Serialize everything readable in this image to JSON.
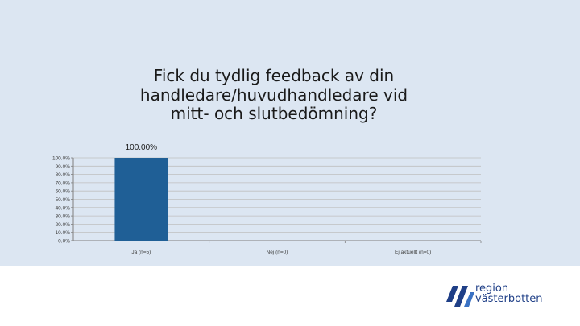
{
  "chart_data": {
    "type": "bar",
    "title": "Fick du tydlig feedback av din handledare/huvudhandledare vid mitt- och slutbedömning?",
    "categories": [
      "Ja (n=5)",
      "Nej (n=0)",
      "Ej aktuellt (n=0)"
    ],
    "values": [
      100.0,
      0.0,
      0.0
    ],
    "data_labels": [
      "100.00%",
      "",
      ""
    ],
    "y_ticks": [
      "100.0%",
      "90.0%",
      "80.0%",
      "70.0%",
      "60.0%",
      "50.0%",
      "40.0%",
      "30.0%",
      "20.0%",
      "10.0%",
      "0.0%"
    ],
    "ylim": [
      0,
      100
    ],
    "xlabel": "",
    "ylabel": "",
    "grid": true,
    "bar_color": "#1f5f96"
  },
  "logo": {
    "line1": "region",
    "line2": "västerbotten",
    "color": "#1f3f87"
  }
}
